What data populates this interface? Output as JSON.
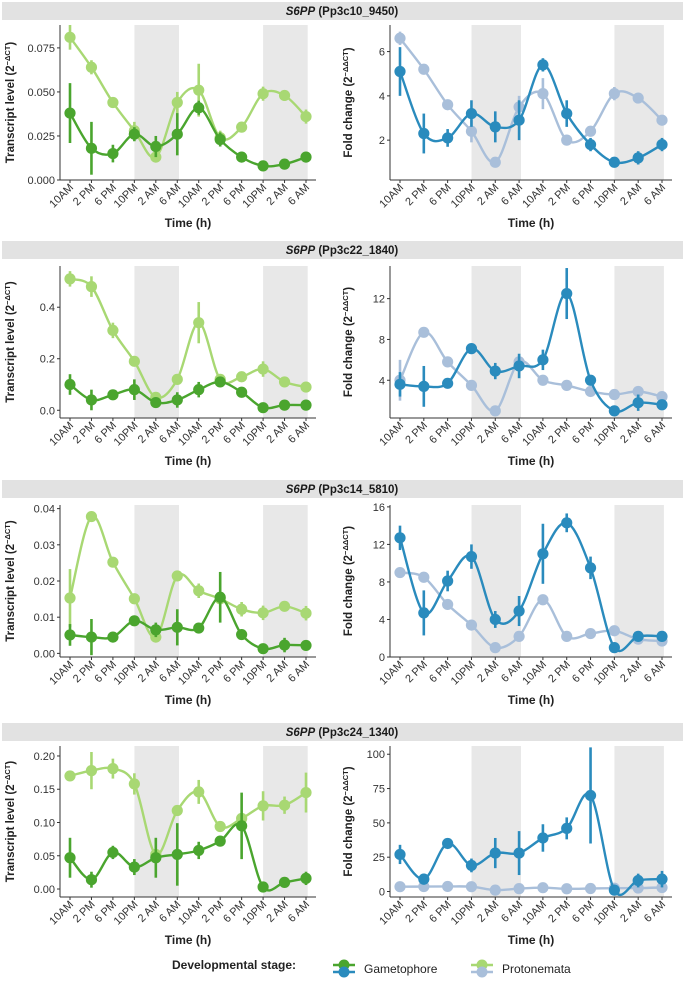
{
  "figure": {
    "time_labels": [
      "10AM",
      "2 PM",
      "6 PM",
      "10PM",
      "2 AM",
      "6 AM",
      "10AM",
      "2 PM",
      "6 PM",
      "10PM",
      "2 AM",
      "6 AM"
    ],
    "xlabel": "Time (h)",
    "gene_italic": "S6PP",
    "legend": {
      "title": "Developmental stage:",
      "items": [
        {
          "name": "Gametophore",
          "color": "#2a8bbd"
        },
        {
          "name": "Protonemata",
          "color": "#a9bfda"
        }
      ]
    },
    "colors": {
      "gametophore_transcript": "#4aa52e",
      "protonemata_transcript": "#a8d873",
      "gametophore_fold": "#2a8bbd",
      "protonemata_fold": "#a9bfda",
      "dark_shade": "#e8e8e8",
      "header_bg": "#e2e2e2"
    }
  },
  "chart_data": [
    {
      "type": "line",
      "panel": "row1-left",
      "header_locus": "(Pp3c10_9450)",
      "ylabel": "Transcript level (2",
      "ylabel_sup": "−ΔCT",
      "ylabel_close": ")",
      "ylim": [
        0,
        0.088
      ],
      "yticks": [
        0,
        0.025,
        0.05,
        0.075
      ],
      "ytick_labels": [
        "0.000",
        "0.025",
        "0.050",
        "0.075"
      ],
      "categories": [
        "10AM",
        "2 PM",
        "6 PM",
        "10PM",
        "2 AM",
        "6 AM",
        "10AM",
        "2 PM",
        "6 PM",
        "10PM",
        "2 AM",
        "6 AM"
      ],
      "series": [
        {
          "name": "Protonemata",
          "values": [
            0.081,
            0.064,
            0.044,
            0.028,
            0.013,
            0.044,
            0.051,
            0.024,
            0.03,
            0.049,
            0.048,
            0.036
          ],
          "err": [
            0.007,
            0.004,
            0.002,
            0.005,
            0.003,
            0.006,
            0.015,
            0.004,
            0.002,
            0.004,
            0.003,
            0.004
          ]
        },
        {
          "name": "Gametophore",
          "values": [
            0.038,
            0.018,
            0.015,
            0.026,
            0.019,
            0.026,
            0.041,
            0.023,
            0.013,
            0.008,
            0.009,
            0.013
          ],
          "err": [
            0.017,
            0.015,
            0.005,
            0.004,
            0.006,
            0.012,
            0.004,
            0.004,
            0.003,
            0.002,
            0.002,
            0.003
          ]
        }
      ]
    },
    {
      "type": "line",
      "panel": "row1-right",
      "ylabel": "Fold change (2",
      "ylabel_sup": "−ΔΔCT",
      "ylabel_close": ")",
      "ylim": [
        0.2,
        7.2
      ],
      "yticks": [
        2,
        4,
        6
      ],
      "ytick_labels": [
        "2",
        "4",
        "6"
      ],
      "categories": [
        "10AM",
        "2 PM",
        "6 PM",
        "10PM",
        "2 AM",
        "6 AM",
        "10AM",
        "2 PM",
        "6 PM",
        "10PM",
        "2 AM",
        "6 AM"
      ],
      "series": [
        {
          "name": "Protonemata",
          "values": [
            6.6,
            5.2,
            3.6,
            2.4,
            1.0,
            3.5,
            4.1,
            2.0,
            2.4,
            4.1,
            3.9,
            2.9
          ],
          "err": [
            0.3,
            0.2,
            0.1,
            0.5,
            0.1,
            0.5,
            0.7,
            0.1,
            0.1,
            0.3,
            0.2,
            0.2
          ]
        },
        {
          "name": "Gametophore",
          "values": [
            5.1,
            2.3,
            2.1,
            3.2,
            2.6,
            2.9,
            5.4,
            3.2,
            1.8,
            1.0,
            1.2,
            1.8
          ],
          "err": [
            1.1,
            0.9,
            0.4,
            0.6,
            0.7,
            0.9,
            0.3,
            0.6,
            0.3,
            0.1,
            0.3,
            0.3
          ]
        }
      ]
    },
    {
      "type": "line",
      "panel": "row2-left",
      "header_locus": "(Pp3c22_1840)",
      "ylabel": "Transcript level (2",
      "ylabel_sup": "−ΔCT",
      "ylabel_close": ")",
      "ylim": [
        -0.03,
        0.56
      ],
      "yticks": [
        0,
        0.2,
        0.4
      ],
      "ytick_labels": [
        "0.0",
        "0.2",
        "0.4"
      ],
      "categories": [
        "10AM",
        "2 PM",
        "6 PM",
        "10PM",
        "2 AM",
        "6 AM",
        "10AM",
        "2 PM",
        "6 PM",
        "10PM",
        "2 AM",
        "6 AM"
      ],
      "series": [
        {
          "name": "Protonemata",
          "values": [
            0.51,
            0.48,
            0.31,
            0.19,
            0.05,
            0.12,
            0.34,
            0.12,
            0.13,
            0.16,
            0.11,
            0.09
          ],
          "err": [
            0.03,
            0.04,
            0.03,
            0.02,
            0.02,
            0.02,
            0.08,
            0.02,
            0.02,
            0.03,
            0.02,
            0.02
          ]
        },
        {
          "name": "Gametophore",
          "values": [
            0.1,
            0.04,
            0.06,
            0.08,
            0.03,
            0.04,
            0.08,
            0.11,
            0.07,
            0.01,
            0.02,
            0.02
          ],
          "err": [
            0.04,
            0.04,
            0.02,
            0.04,
            0.02,
            0.03,
            0.03,
            0.02,
            0.02,
            0.01,
            0.01,
            0.01
          ]
        }
      ]
    },
    {
      "type": "line",
      "panel": "row2-right",
      "ylabel": "Fold change (2",
      "ylabel_sup": "−ΔΔCT",
      "ylabel_close": ")",
      "ylim": [
        0.3,
        15.2
      ],
      "yticks": [
        4,
        8,
        12
      ],
      "ytick_labels": [
        "4",
        "8",
        "12"
      ],
      "categories": [
        "10AM",
        "2 PM",
        "6 PM",
        "10PM",
        "2 AM",
        "6 AM",
        "10AM",
        "2 PM",
        "6 PM",
        "10PM",
        "2 AM",
        "6 AM"
      ],
      "series": [
        {
          "name": "Protonemata",
          "values": [
            4.0,
            8.7,
            5.8,
            3.5,
            1.0,
            5.8,
            4.0,
            3.5,
            2.9,
            2.6,
            2.9,
            2.4
          ],
          "err": [
            2.0,
            0.3,
            0.3,
            0.3,
            0.1,
            0.4,
            0.4,
            0.3,
            0.2,
            0.3,
            0.3,
            0.2
          ]
        },
        {
          "name": "Gametophore",
          "values": [
            3.6,
            3.4,
            3.7,
            7.1,
            4.9,
            5.4,
            6.0,
            12.5,
            4.0,
            1.0,
            1.8,
            1.6
          ],
          "err": [
            1.2,
            2.0,
            0.5,
            0.4,
            0.8,
            1.2,
            1.0,
            2.5,
            0.5,
            0.2,
            0.8,
            0.4
          ]
        }
      ]
    },
    {
      "type": "line",
      "panel": "row3-left",
      "header_locus": "(Pp3c14_5810)",
      "ylabel": "Transcript level (2",
      "ylabel_sup": "−ΔCT",
      "ylabel_close": ")",
      "ylim": [
        -0.001,
        0.041
      ],
      "yticks": [
        0,
        0.01,
        0.02,
        0.03,
        0.04
      ],
      "ytick_labels": [
        "0.00",
        "0.01",
        "0.02",
        "0.03",
        "0.04"
      ],
      "categories": [
        "10AM",
        "2 PM",
        "6 PM",
        "10PM",
        "2 AM",
        "6 AM",
        "10AM",
        "2 PM",
        "6 PM",
        "10PM",
        "2 AM",
        "6 AM"
      ],
      "series": [
        {
          "name": "Protonemata",
          "values": [
            0.0153,
            0.0378,
            0.0252,
            0.0151,
            0.0045,
            0.0214,
            0.0173,
            0.0151,
            0.0122,
            0.0112,
            0.013,
            0.0111
          ],
          "err": [
            0.008,
            0.001,
            0.001,
            0.001,
            0.001,
            0.001,
            0.002,
            0.001,
            0.002,
            0.002,
            0.001,
            0.002
          ]
        },
        {
          "name": "Gametophore",
          "values": [
            0.0051,
            0.0045,
            0.0045,
            0.009,
            0.0065,
            0.0072,
            0.007,
            0.0155,
            0.0052,
            0.0013,
            0.0023,
            0.0022
          ],
          "err": [
            0.003,
            0.005,
            0.001,
            0.001,
            0.002,
            0.005,
            0.001,
            0.007,
            0.001,
            0.001,
            0.002,
            0.001
          ]
        }
      ]
    },
    {
      "type": "line",
      "panel": "row3-right",
      "ylim": [
        0,
        16.2
      ],
      "ylabel": "Fold change (2",
      "ylabel_sup": "−ΔΔCT",
      "ylabel_close": ")",
      "yticks": [
        0,
        4,
        8,
        12,
        16
      ],
      "ytick_labels": [
        "0",
        "4",
        "8",
        "12",
        "16"
      ],
      "categories": [
        "10AM",
        "2 PM",
        "6 PM",
        "10PM",
        "2 AM",
        "6 AM",
        "10AM",
        "2 PM",
        "6 PM",
        "10PM",
        "2 AM",
        "6 AM"
      ],
      "series": [
        {
          "name": "Protonemata",
          "values": [
            9.0,
            8.5,
            5.6,
            3.4,
            1.0,
            2.2,
            6.1,
            2.2,
            2.5,
            2.8,
            1.9,
            1.7
          ],
          "err": [
            0.2,
            0.3,
            0.3,
            0.3,
            0.1,
            0.4,
            0.4,
            0.2,
            0.2,
            0.2,
            0.2,
            0.2
          ]
        },
        {
          "name": "Gametophore",
          "values": [
            12.7,
            4.7,
            8.1,
            10.7,
            4.0,
            4.9,
            11.0,
            14.3,
            9.5,
            1.0,
            2.2,
            2.2
          ],
          "err": [
            1.3,
            2.4,
            1.1,
            1.3,
            0.9,
            1.6,
            3.2,
            1.0,
            1.2,
            0.2,
            0.4,
            0.4
          ]
        }
      ]
    },
    {
      "type": "line",
      "panel": "row4-left",
      "header_locus": "(Pp3c24_1340)",
      "ylabel": "Transcript level (2",
      "ylabel_sup": "−Δ",
      "ylabel_sup2": "CT",
      "ylabel_close": ")",
      "ylim": [
        -0.012,
        0.215
      ],
      "yticks": [
        0,
        0.05,
        0.1,
        0.15,
        0.2
      ],
      "ytick_labels": [
        "0.00",
        "0.05",
        "0.10",
        "0.15",
        "0.20"
      ],
      "categories": [
        "10AM",
        "2 PM",
        "6 PM",
        "10PM",
        "2 AM",
        "6 AM",
        "10AM",
        "2 PM",
        "6 PM",
        "10PM",
        "2 AM",
        "6 AM"
      ],
      "series": [
        {
          "name": "Protonemata",
          "values": [
            0.17,
            0.178,
            0.181,
            0.158,
            0.052,
            0.118,
            0.146,
            0.094,
            0.106,
            0.125,
            0.126,
            0.145
          ],
          "err": [
            0.005,
            0.028,
            0.015,
            0.016,
            0.004,
            0.004,
            0.018,
            0.005,
            0.004,
            0.022,
            0.013,
            0.03
          ]
        },
        {
          "name": "Gametophore",
          "values": [
            0.047,
            0.014,
            0.055,
            0.033,
            0.047,
            0.052,
            0.058,
            0.072,
            0.095,
            0.003,
            0.01,
            0.016
          ],
          "err": [
            0.03,
            0.012,
            0.01,
            0.012,
            0.03,
            0.047,
            0.013,
            0.008,
            0.05,
            0.003,
            0.006,
            0.01
          ]
        }
      ]
    },
    {
      "type": "line",
      "panel": "row4-right",
      "ylabel": "Fold change (2",
      "ylabel_sup": "−ΔΔCT",
      "ylabel_close": ")",
      "ylim": [
        -4,
        106
      ],
      "yticks": [
        0,
        25,
        50,
        75,
        100
      ],
      "ytick_labels": [
        "0",
        "25",
        "50",
        "75",
        "100"
      ],
      "categories": [
        "10AM",
        "2 PM",
        "6 PM",
        "10PM",
        "2 AM",
        "6 AM",
        "10AM",
        "2 PM",
        "6 PM",
        "10PM",
        "2 AM",
        "6 AM"
      ],
      "series": [
        {
          "name": "Protonemata",
          "values": [
            3.5,
            3.6,
            3.7,
            3.5,
            1.0,
            2.1,
            2.8,
            2.0,
            2.2,
            2.4,
            2.5,
            2.9
          ],
          "err": [
            0.8,
            0.8,
            0.8,
            0.8,
            0.2,
            0.6,
            0.6,
            0.5,
            0.5,
            0.6,
            0.6,
            0.7
          ]
        },
        {
          "name": "Gametophore",
          "values": [
            27,
            9,
            35,
            19,
            28,
            28,
            39,
            46,
            70,
            1,
            8,
            9
          ],
          "err": [
            7,
            4,
            3,
            5,
            11,
            16,
            10,
            8,
            35,
            1,
            5,
            6
          ]
        }
      ]
    }
  ]
}
